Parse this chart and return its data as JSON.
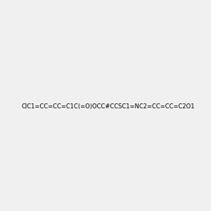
{
  "smiles": "ClC1=CC=CC=C1C(=O)OCC#CCSC1=NC2=CC=CC=C2O1",
  "title": "",
  "bg_color": "#f0f0f0",
  "fig_width": 3.0,
  "fig_height": 3.0,
  "dpi": 100,
  "atom_colors": {
    "O": "#ff0000",
    "N": "#0000ff",
    "S": "#cccc00",
    "Cl": "#00aa00",
    "C": "#000000"
  },
  "bond_color": "#000000",
  "bond_width": 1.5
}
